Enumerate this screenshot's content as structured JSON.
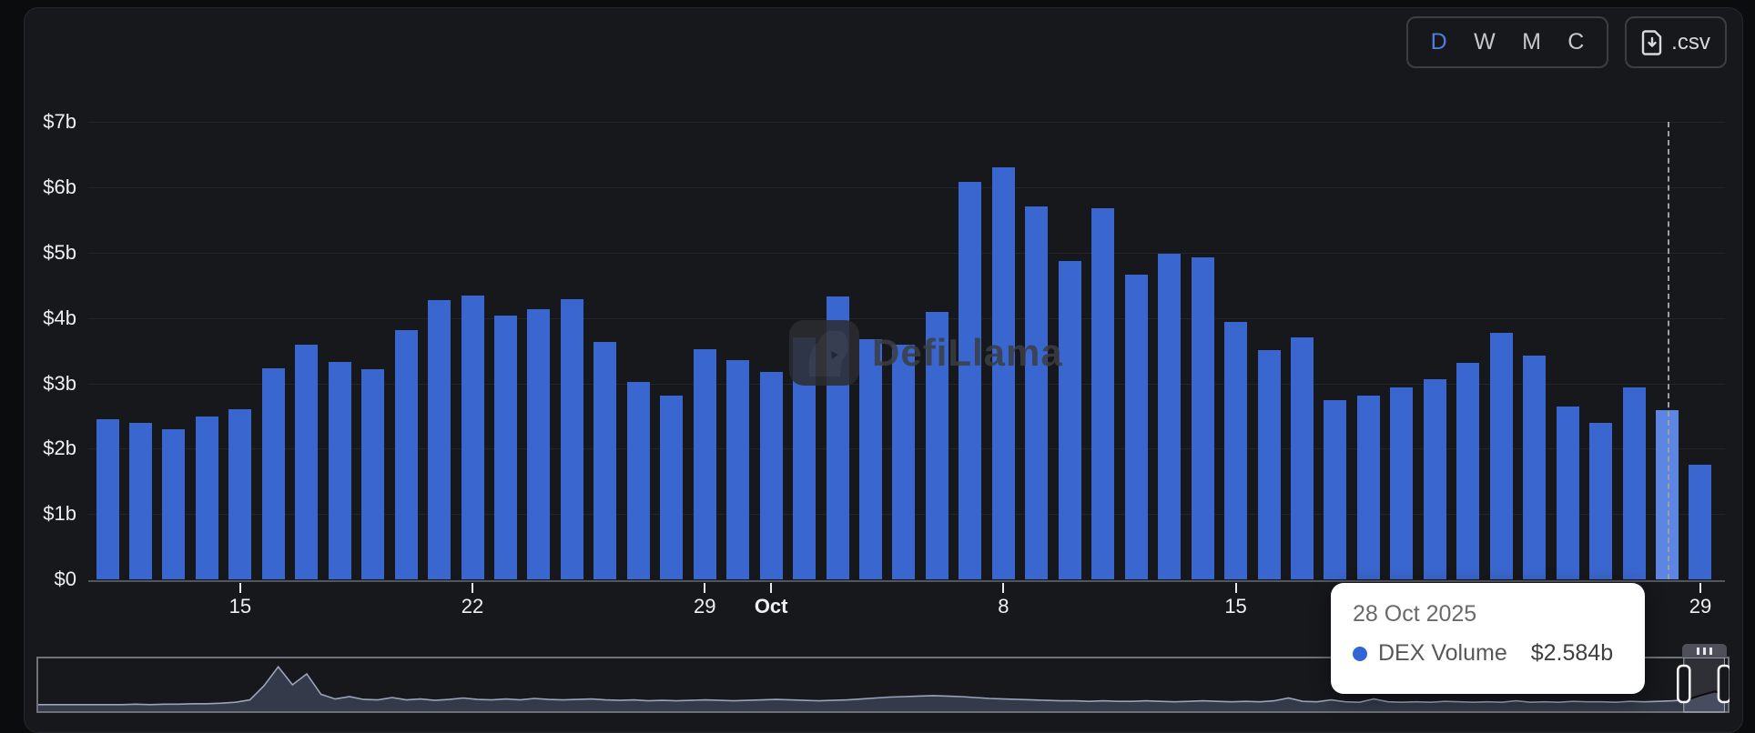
{
  "toolbar": {
    "time_buttons": [
      {
        "label": "D",
        "active": true
      },
      {
        "label": "W",
        "active": false
      },
      {
        "label": "M",
        "active": false
      },
      {
        "label": "C",
        "active": false
      }
    ],
    "csv_label": ".csv"
  },
  "watermark": {
    "text": "DefiLlama"
  },
  "tooltip": {
    "date": "28 Oct 2025",
    "series": "DEX Volume",
    "value": "$2.584b"
  },
  "colors": {
    "bar": "#3a67cf",
    "bar_hover": "#5d85e2",
    "active_button": "#4d7de2",
    "tooltip_dot": "#3264d6"
  },
  "chart_data": {
    "type": "bar",
    "series_name": "DEX Volume",
    "unit": "billions USD",
    "ylim": [
      0,
      7
    ],
    "grid": true,
    "hover_index": 47,
    "y_ticks": [
      {
        "label": "$7b",
        "value": 7
      },
      {
        "label": "$6b",
        "value": 6
      },
      {
        "label": "$5b",
        "value": 5
      },
      {
        "label": "$4b",
        "value": 4
      },
      {
        "label": "$3b",
        "value": 3
      },
      {
        "label": "$2b",
        "value": 2
      },
      {
        "label": "$1b",
        "value": 1
      },
      {
        "label": "$0",
        "value": 0
      }
    ],
    "x_ticks": [
      {
        "label": "15",
        "index": 4,
        "bold": false
      },
      {
        "label": "22",
        "index": 11,
        "bold": false
      },
      {
        "label": "29",
        "index": 18,
        "bold": false
      },
      {
        "label": "Oct",
        "index": 20,
        "bold": true
      },
      {
        "label": "8",
        "index": 27,
        "bold": false
      },
      {
        "label": "15",
        "index": 34,
        "bold": false
      },
      {
        "label": "22",
        "index": 41,
        "bold": false
      },
      {
        "label": "29",
        "index": 48,
        "bold": false
      }
    ],
    "x": [
      "11 Sep 2025",
      "12 Sep 2025",
      "13 Sep 2025",
      "14 Sep 2025",
      "15 Sep 2025",
      "16 Sep 2025",
      "17 Sep 2025",
      "18 Sep 2025",
      "19 Sep 2025",
      "20 Sep 2025",
      "21 Sep 2025",
      "22 Sep 2025",
      "23 Sep 2025",
      "24 Sep 2025",
      "25 Sep 2025",
      "26 Sep 2025",
      "27 Sep 2025",
      "28 Sep 2025",
      "29 Sep 2025",
      "30 Sep 2025",
      "1 Oct 2025",
      "2 Oct 2025",
      "3 Oct 2025",
      "4 Oct 2025",
      "5 Oct 2025",
      "6 Oct 2025",
      "7 Oct 2025",
      "8 Oct 2025",
      "9 Oct 2025",
      "10 Oct 2025",
      "11 Oct 2025",
      "12 Oct 2025",
      "13 Oct 2025",
      "14 Oct 2025",
      "15 Oct 2025",
      "16 Oct 2025",
      "17 Oct 2025",
      "18 Oct 2025",
      "19 Oct 2025",
      "20 Oct 2025",
      "21 Oct 2025",
      "22 Oct 2025",
      "23 Oct 2025",
      "24 Oct 2025",
      "25 Oct 2025",
      "26 Oct 2025",
      "27 Oct 2025",
      "28 Oct 2025",
      "29 Oct 2025"
    ],
    "values": [
      2.45,
      2.39,
      2.3,
      2.49,
      2.61,
      3.23,
      3.6,
      3.33,
      3.22,
      3.81,
      4.27,
      4.34,
      4.04,
      4.14,
      4.29,
      3.64,
      3.02,
      2.81,
      3.52,
      3.36,
      3.17,
      3.7,
      4.33,
      3.68,
      3.59,
      4.09,
      6.08,
      6.31,
      5.71,
      4.88,
      5.68,
      4.66,
      4.99,
      4.93,
      3.94,
      3.51,
      3.7,
      2.75,
      2.82,
      2.94,
      3.06,
      3.31,
      3.78,
      3.43,
      2.64,
      2.39,
      2.94,
      2.584,
      1.75
    ],
    "minimap": {
      "type": "area",
      "selection_range_fraction": [
        0.973,
        0.997
      ],
      "profile": [
        0.1,
        0.1,
        0.1,
        0.1,
        0.1,
        0.1,
        0.1,
        0.11,
        0.1,
        0.11,
        0.11,
        0.12,
        0.12,
        0.13,
        0.15,
        0.2,
        0.5,
        0.9,
        0.52,
        0.75,
        0.32,
        0.22,
        0.27,
        0.21,
        0.2,
        0.25,
        0.2,
        0.22,
        0.19,
        0.21,
        0.24,
        0.21,
        0.2,
        0.22,
        0.2,
        0.23,
        0.21,
        0.2,
        0.21,
        0.22,
        0.2,
        0.19,
        0.2,
        0.18,
        0.19,
        0.18,
        0.19,
        0.2,
        0.19,
        0.18,
        0.19,
        0.2,
        0.21,
        0.2,
        0.19,
        0.18,
        0.19,
        0.2,
        0.22,
        0.24,
        0.26,
        0.27,
        0.28,
        0.29,
        0.28,
        0.27,
        0.25,
        0.23,
        0.22,
        0.21,
        0.2,
        0.19,
        0.18,
        0.18,
        0.17,
        0.18,
        0.17,
        0.17,
        0.18,
        0.17,
        0.16,
        0.17,
        0.18,
        0.17,
        0.16,
        0.17,
        0.16,
        0.18,
        0.24,
        0.17,
        0.16,
        0.2,
        0.16,
        0.15,
        0.22,
        0.16,
        0.15,
        0.16,
        0.15,
        0.17,
        0.16,
        0.15,
        0.16,
        0.15,
        0.18,
        0.15,
        0.16,
        0.15,
        0.17,
        0.16,
        0.16,
        0.15,
        0.17,
        0.16,
        0.17,
        0.18,
        0.2,
        0.3,
        0.38,
        0.22
      ]
    }
  }
}
